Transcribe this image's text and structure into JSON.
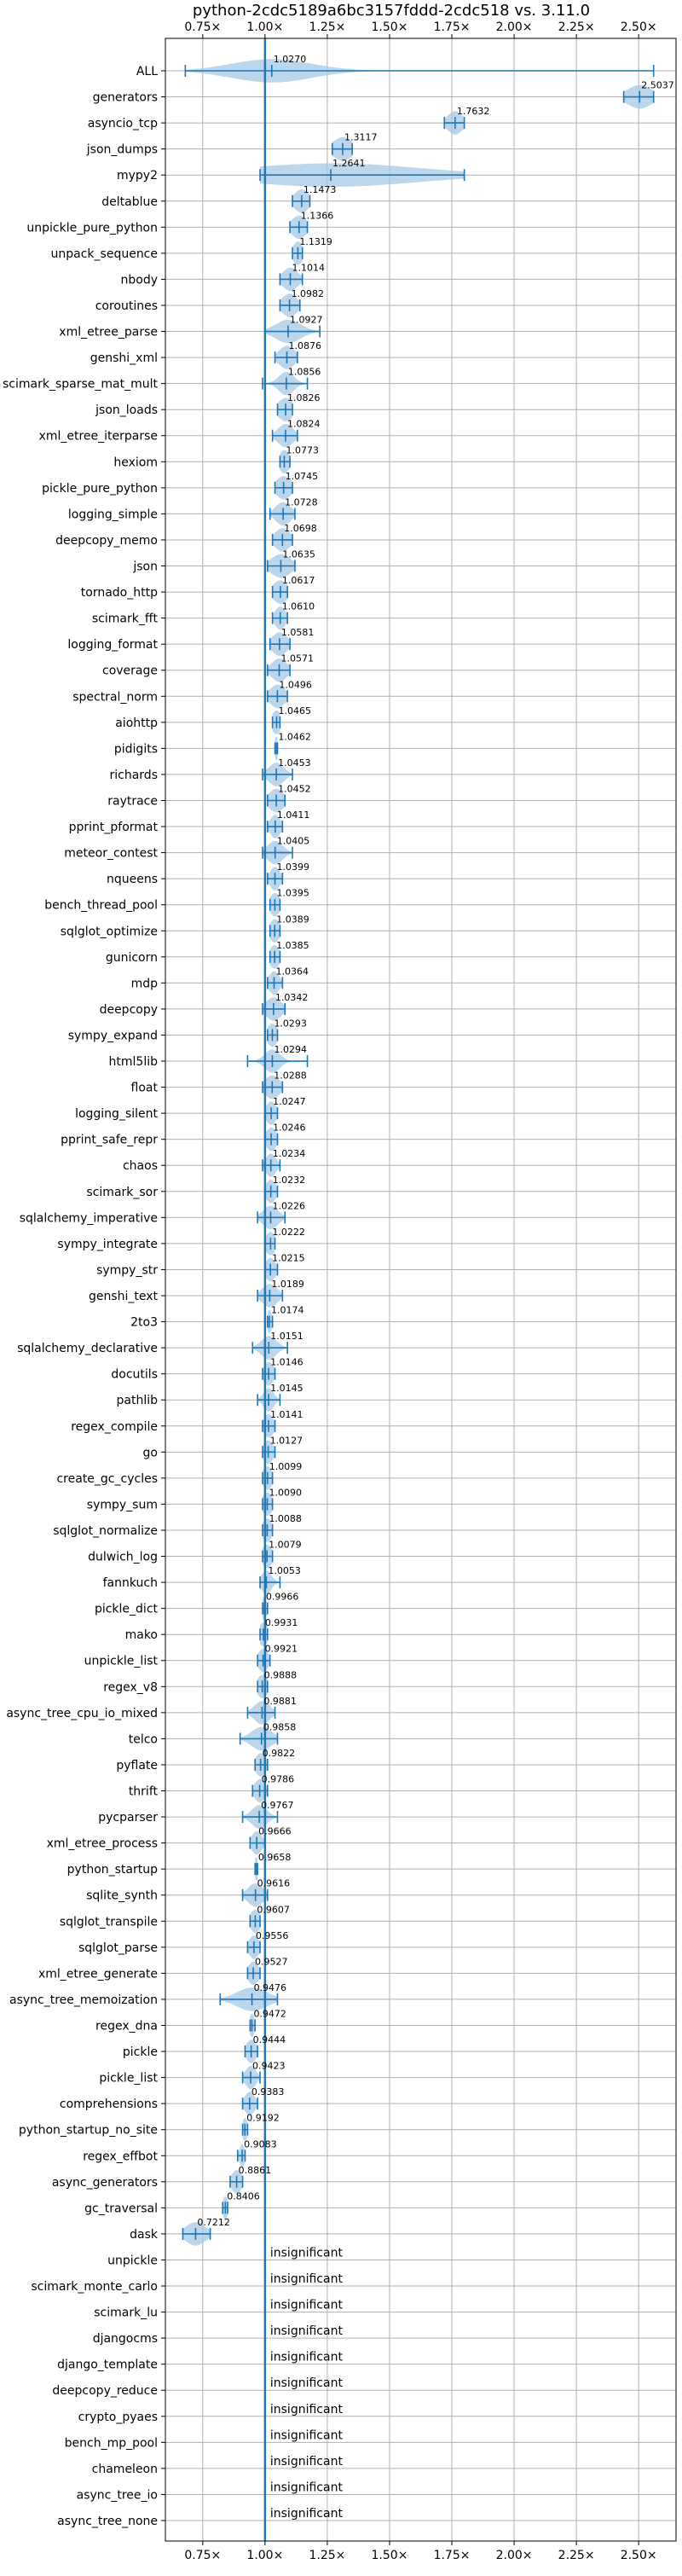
{
  "chart_data": {
    "type": "violin",
    "title": "python-2cdc5189a6bc3157fddd-2cdc518 vs. 3.11.0",
    "xlabel": "",
    "ylabel": "",
    "xlim": [
      0.6,
      2.65
    ],
    "xticks": [
      0.75,
      1.0,
      1.25,
      1.5,
      1.75,
      2.0,
      2.25,
      2.5
    ],
    "xtick_labels": [
      "0.75x",
      "1.00x",
      "1.25x",
      "1.50x",
      "1.75x",
      "2.00x",
      "2.25x",
      "2.50x"
    ],
    "reference_line": 1.0,
    "grid": true,
    "significant": [
      {
        "name": "ALL",
        "value": 1.027,
        "label": "1.0270",
        "min": 0.68,
        "max": 2.56,
        "spread": 0.16
      },
      {
        "name": "generators",
        "value": 2.5037,
        "label": "2.5037",
        "min": 2.44,
        "max": 2.56,
        "spread": 0.05
      },
      {
        "name": "asyncio_tcp",
        "value": 1.7632,
        "label": "1.7632",
        "min": 1.72,
        "max": 1.8,
        "spread": 0.03
      },
      {
        "name": "json_dumps",
        "value": 1.3117,
        "label": "1.3117",
        "min": 1.27,
        "max": 1.35,
        "spread": 0.04
      },
      {
        "name": "mypy2",
        "value": 1.2641,
        "label": "1.2641",
        "min": 0.98,
        "max": 1.8,
        "spread": 0.35
      },
      {
        "name": "deltablue",
        "value": 1.1473,
        "label": "1.1473",
        "min": 1.11,
        "max": 1.18,
        "spread": 0.03
      },
      {
        "name": "unpickle_pure_python",
        "value": 1.1366,
        "label": "1.1366",
        "min": 1.1,
        "max": 1.17,
        "spread": 0.03
      },
      {
        "name": "unpack_sequence",
        "value": 1.1319,
        "label": "1.1319",
        "min": 1.11,
        "max": 1.15,
        "spread": 0.02
      },
      {
        "name": "nbody",
        "value": 1.1014,
        "label": "1.1014",
        "min": 1.06,
        "max": 1.15,
        "spread": 0.03
      },
      {
        "name": "coroutines",
        "value": 1.0982,
        "label": "1.0982",
        "min": 1.06,
        "max": 1.14,
        "spread": 0.03
      },
      {
        "name": "xml_etree_parse",
        "value": 1.0927,
        "label": "1.0927",
        "min": 1.0,
        "max": 1.22,
        "spread": 0.05
      },
      {
        "name": "genshi_xml",
        "value": 1.0876,
        "label": "1.0876",
        "min": 1.04,
        "max": 1.13,
        "spread": 0.03
      },
      {
        "name": "scimark_sparse_mat_mult",
        "value": 1.0856,
        "label": "1.0856",
        "min": 0.99,
        "max": 1.17,
        "spread": 0.03
      },
      {
        "name": "json_loads",
        "value": 1.0826,
        "label": "1.0826",
        "min": 1.05,
        "max": 1.11,
        "spread": 0.03
      },
      {
        "name": "xml_etree_iterparse",
        "value": 1.0824,
        "label": "1.0824",
        "min": 1.03,
        "max": 1.13,
        "spread": 0.03
      },
      {
        "name": "hexiom",
        "value": 1.0773,
        "label": "1.0773",
        "min": 1.06,
        "max": 1.1,
        "spread": 0.02
      },
      {
        "name": "pickle_pure_python",
        "value": 1.0745,
        "label": "1.0745",
        "min": 1.04,
        "max": 1.11,
        "spread": 0.03
      },
      {
        "name": "logging_simple",
        "value": 1.0728,
        "label": "1.0728",
        "min": 1.02,
        "max": 1.12,
        "spread": 0.03
      },
      {
        "name": "deepcopy_memo",
        "value": 1.0698,
        "label": "1.0698",
        "min": 1.03,
        "max": 1.11,
        "spread": 0.03
      },
      {
        "name": "json",
        "value": 1.0635,
        "label": "1.0635",
        "min": 1.01,
        "max": 1.12,
        "spread": 0.04
      },
      {
        "name": "tornado_http",
        "value": 1.0617,
        "label": "1.0617",
        "min": 1.03,
        "max": 1.09,
        "spread": 0.03
      },
      {
        "name": "scimark_fft",
        "value": 1.061,
        "label": "1.0610",
        "min": 1.03,
        "max": 1.09,
        "spread": 0.02
      },
      {
        "name": "logging_format",
        "value": 1.0581,
        "label": "1.0581",
        "min": 1.02,
        "max": 1.1,
        "spread": 0.03
      },
      {
        "name": "coverage",
        "value": 1.0571,
        "label": "1.0571",
        "min": 1.01,
        "max": 1.1,
        "spread": 0.03
      },
      {
        "name": "spectral_norm",
        "value": 1.0496,
        "label": "1.0496",
        "min": 1.01,
        "max": 1.09,
        "spread": 0.03
      },
      {
        "name": "aiohttp",
        "value": 1.0465,
        "label": "1.0465",
        "min": 1.03,
        "max": 1.06,
        "spread": 0.02
      },
      {
        "name": "pidigits",
        "value": 1.0462,
        "label": "1.0462",
        "min": 1.04,
        "max": 1.05,
        "spread": 0.01
      },
      {
        "name": "richards",
        "value": 1.0453,
        "label": "1.0453",
        "min": 0.99,
        "max": 1.11,
        "spread": 0.03
      },
      {
        "name": "raytrace",
        "value": 1.0452,
        "label": "1.0452",
        "min": 1.01,
        "max": 1.08,
        "spread": 0.03
      },
      {
        "name": "pprint_pformat",
        "value": 1.0411,
        "label": "1.0411",
        "min": 1.01,
        "max": 1.07,
        "spread": 0.02
      },
      {
        "name": "meteor_contest",
        "value": 1.0405,
        "label": "1.0405",
        "min": 0.99,
        "max": 1.11,
        "spread": 0.03
      },
      {
        "name": "nqueens",
        "value": 1.0399,
        "label": "1.0399",
        "min": 1.01,
        "max": 1.07,
        "spread": 0.02
      },
      {
        "name": "bench_thread_pool",
        "value": 1.0395,
        "label": "1.0395",
        "min": 1.02,
        "max": 1.06,
        "spread": 0.02
      },
      {
        "name": "sqlglot_optimize",
        "value": 1.0389,
        "label": "1.0389",
        "min": 1.02,
        "max": 1.06,
        "spread": 0.02
      },
      {
        "name": "gunicorn",
        "value": 1.0385,
        "label": "1.0385",
        "min": 1.02,
        "max": 1.06,
        "spread": 0.02
      },
      {
        "name": "mdp",
        "value": 1.0364,
        "label": "1.0364",
        "min": 1.01,
        "max": 1.07,
        "spread": 0.02
      },
      {
        "name": "deepcopy",
        "value": 1.0342,
        "label": "1.0342",
        "min": 0.99,
        "max": 1.08,
        "spread": 0.03
      },
      {
        "name": "sympy_expand",
        "value": 1.0293,
        "label": "1.0293",
        "min": 1.01,
        "max": 1.05,
        "spread": 0.02
      },
      {
        "name": "html5lib",
        "value": 1.0294,
        "label": "1.0294",
        "min": 0.93,
        "max": 1.17,
        "spread": 0.03
      },
      {
        "name": "float",
        "value": 1.0288,
        "label": "1.0288",
        "min": 0.99,
        "max": 1.07,
        "spread": 0.03
      },
      {
        "name": "logging_silent",
        "value": 1.0247,
        "label": "1.0247",
        "min": 1.0,
        "max": 1.05,
        "spread": 0.02
      },
      {
        "name": "pprint_safe_repr",
        "value": 1.0246,
        "label": "1.0246",
        "min": 1.0,
        "max": 1.05,
        "spread": 0.02
      },
      {
        "name": "chaos",
        "value": 1.0234,
        "label": "1.0234",
        "min": 0.99,
        "max": 1.06,
        "spread": 0.02
      },
      {
        "name": "scimark_sor",
        "value": 1.0232,
        "label": "1.0232",
        "min": 1.0,
        "max": 1.05,
        "spread": 0.02
      },
      {
        "name": "sqlalchemy_imperative",
        "value": 1.0226,
        "label": "1.0226",
        "min": 0.97,
        "max": 1.08,
        "spread": 0.03
      },
      {
        "name": "sympy_integrate",
        "value": 1.0222,
        "label": "1.0222",
        "min": 1.0,
        "max": 1.04,
        "spread": 0.02
      },
      {
        "name": "sympy_str",
        "value": 1.0215,
        "label": "1.0215",
        "min": 1.0,
        "max": 1.05,
        "spread": 0.02
      },
      {
        "name": "genshi_text",
        "value": 1.0189,
        "label": "1.0189",
        "min": 0.97,
        "max": 1.07,
        "spread": 0.03
      },
      {
        "name": "2to3",
        "value": 1.0174,
        "label": "1.0174",
        "min": 1.01,
        "max": 1.03,
        "spread": 0.01
      },
      {
        "name": "sqlalchemy_declarative",
        "value": 1.0151,
        "label": "1.0151",
        "min": 0.95,
        "max": 1.09,
        "spread": 0.03
      },
      {
        "name": "docutils",
        "value": 1.0146,
        "label": "1.0146",
        "min": 0.99,
        "max": 1.04,
        "spread": 0.02
      },
      {
        "name": "pathlib",
        "value": 1.0145,
        "label": "1.0145",
        "min": 0.97,
        "max": 1.06,
        "spread": 0.02
      },
      {
        "name": "regex_compile",
        "value": 1.0141,
        "label": "1.0141",
        "min": 0.99,
        "max": 1.04,
        "spread": 0.02
      },
      {
        "name": "go",
        "value": 1.0127,
        "label": "1.0127",
        "min": 0.99,
        "max": 1.04,
        "spread": 0.02
      },
      {
        "name": "create_gc_cycles",
        "value": 1.0099,
        "label": "1.0099",
        "min": 0.99,
        "max": 1.03,
        "spread": 0.02
      },
      {
        "name": "sympy_sum",
        "value": 1.009,
        "label": "1.0090",
        "min": 0.99,
        "max": 1.03,
        "spread": 0.02
      },
      {
        "name": "sqlglot_normalize",
        "value": 1.0088,
        "label": "1.0088",
        "min": 0.99,
        "max": 1.03,
        "spread": 0.02
      },
      {
        "name": "dulwich_log",
        "value": 1.0079,
        "label": "1.0079",
        "min": 0.99,
        "max": 1.03,
        "spread": 0.02
      },
      {
        "name": "fannkuch",
        "value": 1.0053,
        "label": "1.0053",
        "min": 0.98,
        "max": 1.06,
        "spread": 0.02
      },
      {
        "name": "pickle_dict",
        "value": 0.9966,
        "label": "0.9966",
        "min": 0.99,
        "max": 1.01,
        "spread": 0.01
      },
      {
        "name": "mako",
        "value": 0.9931,
        "label": "0.9931",
        "min": 0.98,
        "max": 1.01,
        "spread": 0.02
      },
      {
        "name": "unpickle_list",
        "value": 0.9921,
        "label": "0.9921",
        "min": 0.97,
        "max": 1.02,
        "spread": 0.02
      },
      {
        "name": "regex_v8",
        "value": 0.9888,
        "label": "0.9888",
        "min": 0.97,
        "max": 1.01,
        "spread": 0.02
      },
      {
        "name": "async_tree_cpu_io_mixed",
        "value": 0.9881,
        "label": "0.9881",
        "min": 0.93,
        "max": 1.04,
        "spread": 0.03
      },
      {
        "name": "telco",
        "value": 0.9858,
        "label": "0.9858",
        "min": 0.9,
        "max": 1.05,
        "spread": 0.04
      },
      {
        "name": "pyflate",
        "value": 0.9822,
        "label": "0.9822",
        "min": 0.96,
        "max": 1.01,
        "spread": 0.02
      },
      {
        "name": "thrift",
        "value": 0.9786,
        "label": "0.9786",
        "min": 0.95,
        "max": 1.01,
        "spread": 0.02
      },
      {
        "name": "pycparser",
        "value": 0.9767,
        "label": "0.9767",
        "min": 0.91,
        "max": 1.05,
        "spread": 0.03
      },
      {
        "name": "xml_etree_process",
        "value": 0.9666,
        "label": "0.9666",
        "min": 0.94,
        "max": 1.0,
        "spread": 0.02
      },
      {
        "name": "python_startup",
        "value": 0.9658,
        "label": "0.9658",
        "min": 0.96,
        "max": 0.97,
        "spread": 0.01
      },
      {
        "name": "sqlite_synth",
        "value": 0.9616,
        "label": "0.9616",
        "min": 0.91,
        "max": 1.01,
        "spread": 0.03
      },
      {
        "name": "sqlglot_transpile",
        "value": 0.9607,
        "label": "0.9607",
        "min": 0.94,
        "max": 0.98,
        "spread": 0.02
      },
      {
        "name": "sqlglot_parse",
        "value": 0.9556,
        "label": "0.9556",
        "min": 0.93,
        "max": 0.98,
        "spread": 0.02
      },
      {
        "name": "xml_etree_generate",
        "value": 0.9527,
        "label": "0.9527",
        "min": 0.93,
        "max": 0.98,
        "spread": 0.02
      },
      {
        "name": "async_tree_memoization",
        "value": 0.9476,
        "label": "0.9476",
        "min": 0.82,
        "max": 1.05,
        "spread": 0.06
      },
      {
        "name": "regex_dna",
        "value": 0.9472,
        "label": "0.9472",
        "min": 0.94,
        "max": 0.96,
        "spread": 0.01
      },
      {
        "name": "pickle",
        "value": 0.9444,
        "label": "0.9444",
        "min": 0.92,
        "max": 0.97,
        "spread": 0.02
      },
      {
        "name": "pickle_list",
        "value": 0.9423,
        "label": "0.9423",
        "min": 0.91,
        "max": 0.98,
        "spread": 0.02
      },
      {
        "name": "comprehensions",
        "value": 0.9383,
        "label": "0.9383",
        "min": 0.91,
        "max": 0.97,
        "spread": 0.02
      },
      {
        "name": "python_startup_no_site",
        "value": 0.9192,
        "label": "0.9192",
        "min": 0.91,
        "max": 0.93,
        "spread": 0.01
      },
      {
        "name": "regex_effbot",
        "value": 0.9083,
        "label": "0.9083",
        "min": 0.89,
        "max": 0.92,
        "spread": 0.01
      },
      {
        "name": "async_generators",
        "value": 0.8861,
        "label": "0.8861",
        "min": 0.86,
        "max": 0.91,
        "spread": 0.02
      },
      {
        "name": "gc_traversal",
        "value": 0.8406,
        "label": "0.8406",
        "min": 0.83,
        "max": 0.85,
        "spread": 0.01
      },
      {
        "name": "dask",
        "value": 0.7212,
        "label": "0.7212",
        "min": 0.67,
        "max": 0.78,
        "spread": 0.04
      }
    ],
    "insignificant_label": "insignificant",
    "insignificant": [
      "unpickle",
      "scimark_monte_carlo",
      "scimark_lu",
      "djangocms",
      "django_template",
      "deepcopy_reduce",
      "crypto_pyaes",
      "bench_mp_pool",
      "chameleon",
      "async_tree_io",
      "async_tree_none"
    ],
    "colors": {
      "series": "#1f77b4",
      "fill": "#a6c8e6",
      "grid": "#b0b0b0"
    }
  }
}
